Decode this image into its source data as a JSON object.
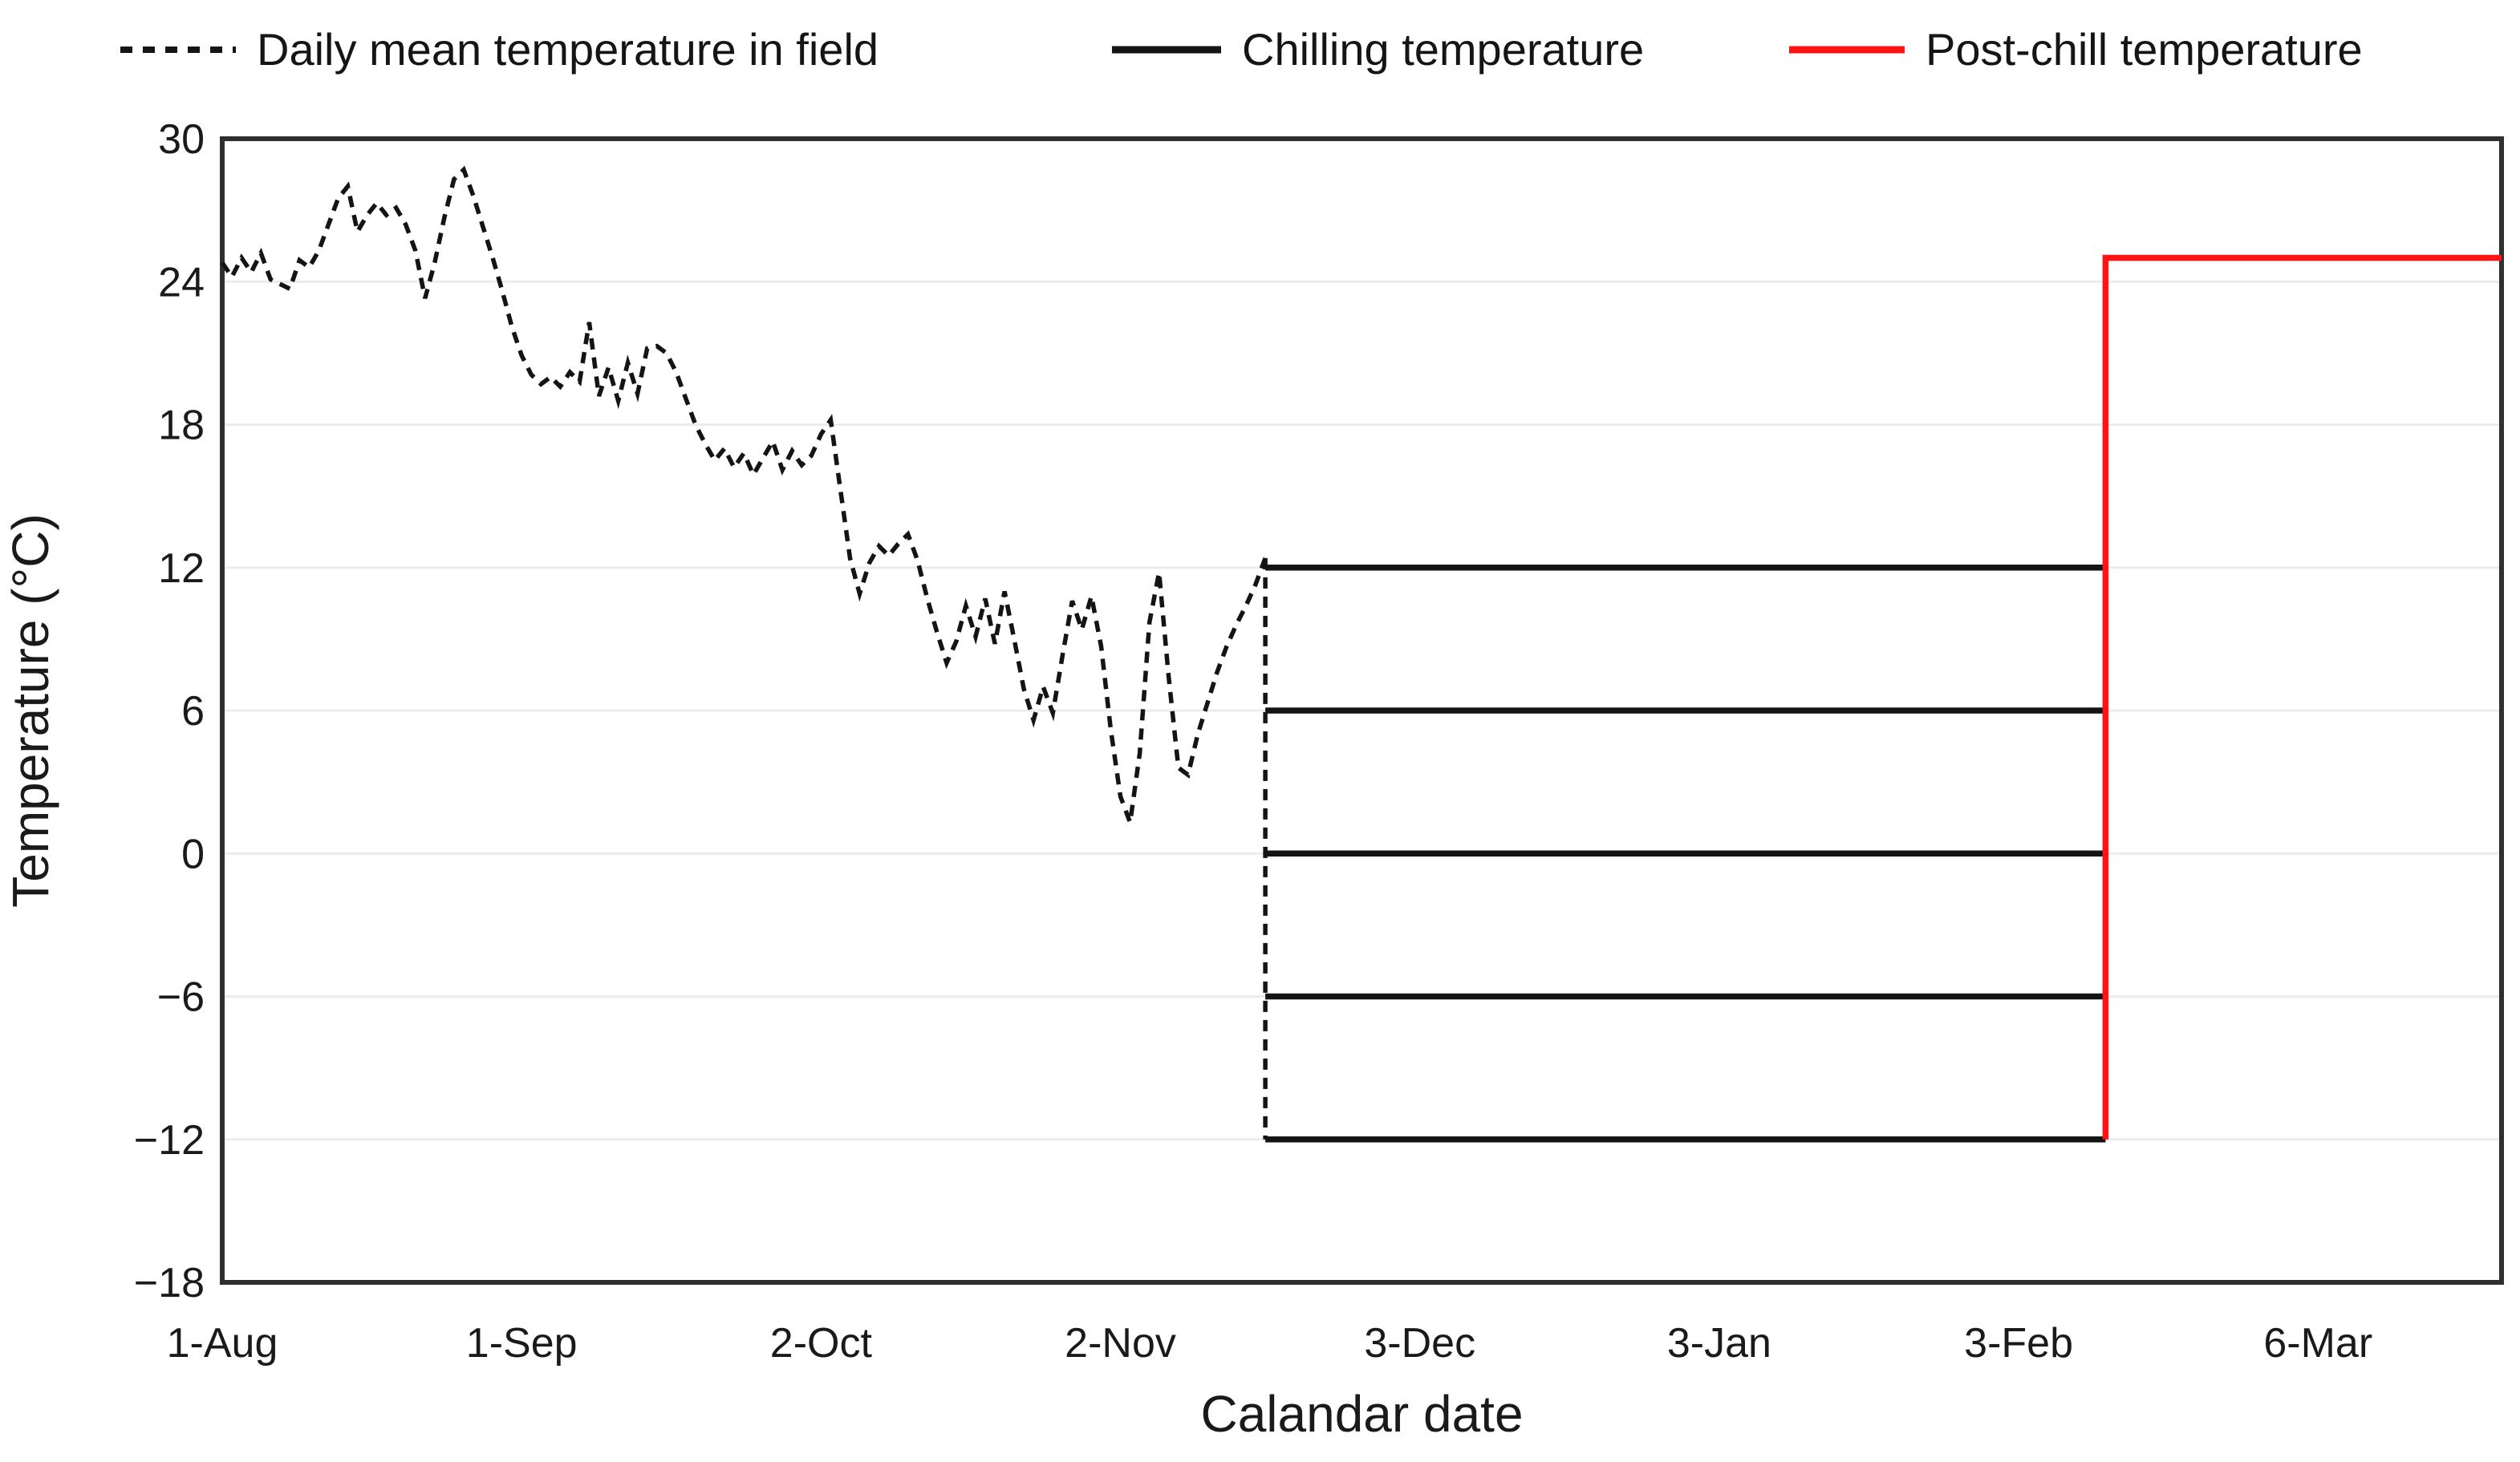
{
  "legend": {
    "items": [
      {
        "label": "Daily mean temperature in field",
        "style": "dashed",
        "color": "#141414"
      },
      {
        "label": "Chilling temperature",
        "style": "solid",
        "color": "#141414"
      },
      {
        "label": "Post-chill temperature",
        "style": "solid",
        "color": "#ff1212"
      }
    ]
  },
  "colors": {
    "series_black": "#141414",
    "series_red": "#ff1212",
    "gridline": "#ececec",
    "plot_border": "#2f2f2f",
    "background": "#ffffff"
  },
  "chart_data": {
    "type": "line",
    "title": "",
    "xlabel": "Calandar date",
    "ylabel": "Temperature (°C)",
    "ylim": [
      -18,
      30
    ],
    "grid": "horizontal light-gray gridlines, full box border, legend top",
    "y_ticks": [
      {
        "label": "30",
        "value": 30
      },
      {
        "label": "24",
        "value": 24
      },
      {
        "label": "18",
        "value": 18
      },
      {
        "label": "12",
        "value": 12
      },
      {
        "label": "6",
        "value": 6
      },
      {
        "label": "0",
        "value": 0
      },
      {
        "label": "−6",
        "value": -6
      },
      {
        "label": "−12",
        "value": -12
      },
      {
        "label": "−18",
        "value": -18
      }
    ],
    "y_grid_values": [
      24,
      18,
      12,
      6,
      0,
      -6,
      -12
    ],
    "x_ticks": [
      {
        "label": "1-Aug",
        "day": 0
      },
      {
        "label": "1-Sep",
        "day": 31
      },
      {
        "label": "2-Oct",
        "day": 62
      },
      {
        "label": "2-Nov",
        "day": 93
      },
      {
        "label": "3-Dec",
        "day": 124
      },
      {
        "label": "3-Jan",
        "day": 155
      },
      {
        "label": "3-Feb",
        "day": 186
      },
      {
        "label": "6-Mar",
        "day": 217
      }
    ],
    "x_axis_day_max": 236,
    "series": [
      {
        "name": "Daily mean temperature in field",
        "style": "dashed",
        "color": "#141414",
        "start_date": "1-Aug",
        "end_date": "17-Nov",
        "sampling": "daily, day 0 = 1-Aug",
        "values_daily": [
          24.8,
          24.2,
          25.0,
          24.4,
          25.2,
          24.1,
          23.9,
          23.7,
          24.9,
          24.6,
          25.3,
          26.4,
          27.5,
          28.0,
          26.1,
          26.8,
          27.3,
          26.8,
          27.1,
          26.4,
          25.3,
          23.3,
          24.8,
          26.7,
          28.3,
          28.7,
          27.6,
          26.3,
          25.0,
          23.6,
          22.1,
          20.9,
          20.1,
          19.7,
          20.0,
          19.6,
          20.2,
          19.8,
          22.3,
          19.2,
          20.4,
          19.0,
          20.6,
          19.3,
          21.2,
          21.3,
          21.0,
          20.2,
          19.1,
          18.0,
          17.2,
          16.5,
          17.0,
          16.2,
          16.8,
          15.9,
          16.6,
          17.3,
          16.1,
          16.9,
          16.3,
          16.7,
          17.6,
          18.2,
          15.3,
          12.4,
          10.9,
          12.2,
          12.9,
          12.5,
          13.0,
          13.4,
          12.3,
          10.7,
          9.3,
          8.0,
          8.9,
          10.4,
          9.1,
          10.7,
          8.8,
          11.0,
          9.0,
          6.9,
          5.6,
          7.0,
          5.9,
          8.3,
          10.6,
          9.4,
          10.8,
          8.7,
          5.2,
          2.4,
          1.3,
          4.2,
          9.7,
          11.8,
          7.4,
          3.6,
          3.3,
          5.0,
          6.3,
          7.6,
          8.7,
          9.6,
          10.4,
          11.3,
          12.4
        ],
        "end_drop_connector": {
          "day": 108,
          "from": 12.4,
          "to": -12,
          "style": "dashed"
        }
      },
      {
        "name": "Chilling temperature",
        "style": "solid",
        "color": "#141414",
        "levels": [
          12,
          6,
          0,
          -6,
          -12
        ],
        "start_day": 108,
        "end_day": 195,
        "start_date": "18-Nov",
        "end_date": "12-Feb"
      },
      {
        "name": "Post-chill temperature",
        "style": "solid",
        "color": "#ff1212",
        "path_points": [
          {
            "day": 195,
            "temp": -12
          },
          {
            "day": 195,
            "temp": 25
          },
          {
            "day": 236,
            "temp": 25
          }
        ],
        "level": 25
      }
    ]
  }
}
